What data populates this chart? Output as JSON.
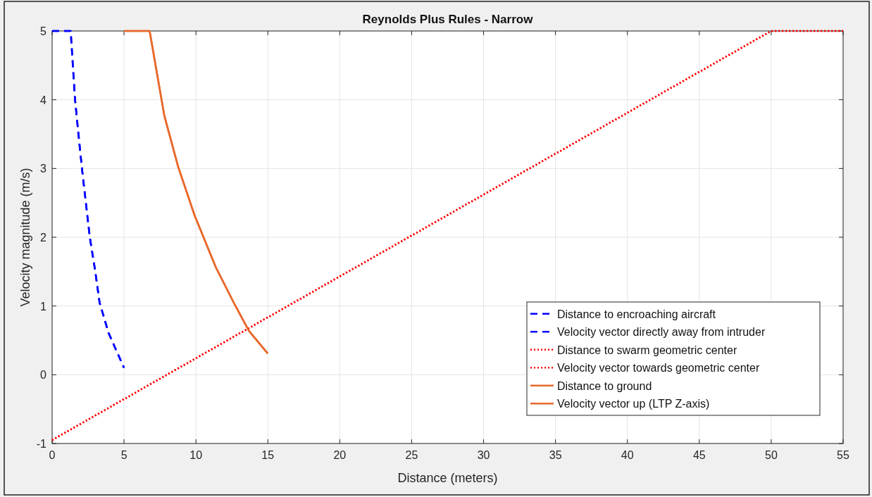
{
  "chart_data": {
    "type": "line",
    "title": "Reynolds Plus Rules - Narrow",
    "xlabel": "Distance (meters)",
    "ylabel": "Velocity magnitude (m/s)",
    "xlim": [
      0,
      55
    ],
    "xticks": [
      0,
      5,
      10,
      15,
      20,
      25,
      30,
      35,
      40,
      45,
      50,
      55
    ],
    "ylim": [
      -1,
      5
    ],
    "yticks": [
      -1,
      0,
      1,
      2,
      3,
      4,
      5
    ],
    "grid": true,
    "legend": "bottom right",
    "series": [
      {
        "name": "Distance to encroaching aircraft",
        "color": "#0000ff",
        "line_style": "dashed",
        "x": [
          0,
          1.29,
          1.59,
          1.83,
          2.08,
          2.62,
          2.98,
          3.3,
          3.92,
          5.0
        ],
        "values": [
          5,
          5,
          4.01,
          3.5,
          2.99,
          2.0,
          1.53,
          1.05,
          0.61,
          0.1
        ]
      },
      {
        "name": "Velocity vector directly away from intruder",
        "color": "#0000ff",
        "line_style": "dashed",
        "x": [
          0,
          1.29,
          1.59,
          1.83,
          2.08,
          2.62,
          2.98,
          3.3,
          3.92,
          5.0
        ],
        "values": [
          5,
          5,
          4.01,
          3.5,
          2.99,
          2.0,
          1.53,
          1.05,
          0.61,
          0.1
        ]
      },
      {
        "name": "Distance to swarm geometric center",
        "color": "#ff0000",
        "line_style": "dotted",
        "x": [
          0,
          50,
          55
        ],
        "values": [
          -0.95,
          5,
          5
        ]
      },
      {
        "name": "Velocity vector towards geometric center",
        "color": "#ff0000",
        "line_style": "dotted",
        "x": [
          0,
          50,
          55
        ],
        "values": [
          -0.95,
          5,
          5
        ]
      },
      {
        "name": "Distance to ground",
        "color": "#e8692c",
        "line_style": "solid",
        "x": [
          5,
          6.78,
          7.8,
          8.77,
          9.92,
          11.39,
          12.7,
          13.68,
          14.99
        ],
        "values": [
          5,
          5,
          3.77,
          3.02,
          2.31,
          1.56,
          1.02,
          0.64,
          0.31
        ]
      },
      {
        "name": "Velocity vector up (LTP Z-axis)",
        "color": "#e8692c",
        "line_style": "solid",
        "x": [
          5,
          6.78,
          7.8,
          8.77,
          9.92,
          11.39,
          12.7,
          13.68,
          14.99
        ],
        "values": [
          5,
          5,
          3.77,
          3.02,
          2.31,
          1.56,
          1.02,
          0.64,
          0.31
        ]
      }
    ]
  }
}
